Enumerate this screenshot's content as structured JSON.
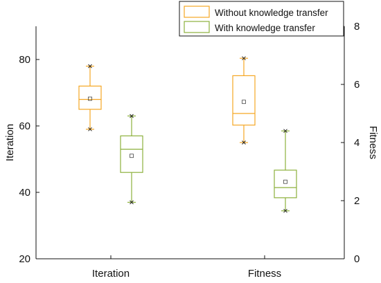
{
  "chart_data": {
    "type": "box",
    "categories": [
      "Iteration",
      "Fitness"
    ],
    "y_left": {
      "label": "Iteration",
      "ticks": [
        "20",
        "40",
        "60",
        "80"
      ],
      "range": [
        20,
        90
      ]
    },
    "y_right": {
      "label": "Fitness",
      "ticks": [
        "0",
        "2",
        "4",
        "6",
        "8"
      ],
      "range": [
        0,
        8
      ]
    },
    "legend": {
      "placement": "top-right"
    },
    "series": [
      {
        "name": "Without knowledge transfer",
        "color": "#F5A623",
        "boxes": [
          {
            "category": "Iteration",
            "axis": "left",
            "min": 59,
            "q1": 65,
            "median": 68,
            "q3": 72,
            "max": 78,
            "mean": 68.2,
            "extremes": [
              59,
              78
            ]
          },
          {
            "category": "Fitness",
            "axis": "right",
            "min": 4.0,
            "q1": 4.6,
            "median": 5.0,
            "q3": 6.3,
            "max": 6.9,
            "mean": 5.4,
            "extremes": [
              4.0,
              6.9
            ]
          }
        ]
      },
      {
        "name": "With knowledge transfer",
        "color": "#8DB03C",
        "boxes": [
          {
            "category": "Iteration",
            "axis": "left",
            "min": 37,
            "q1": 46,
            "median": 53,
            "q3": 57,
            "max": 63,
            "mean": 51,
            "extremes": [
              37,
              63
            ]
          },
          {
            "category": "Fitness",
            "axis": "right",
            "min": 1.65,
            "q1": 2.1,
            "median": 2.45,
            "q3": 3.05,
            "max": 4.4,
            "mean": 2.65,
            "extremes": [
              1.65,
              4.4
            ]
          }
        ]
      }
    ]
  }
}
